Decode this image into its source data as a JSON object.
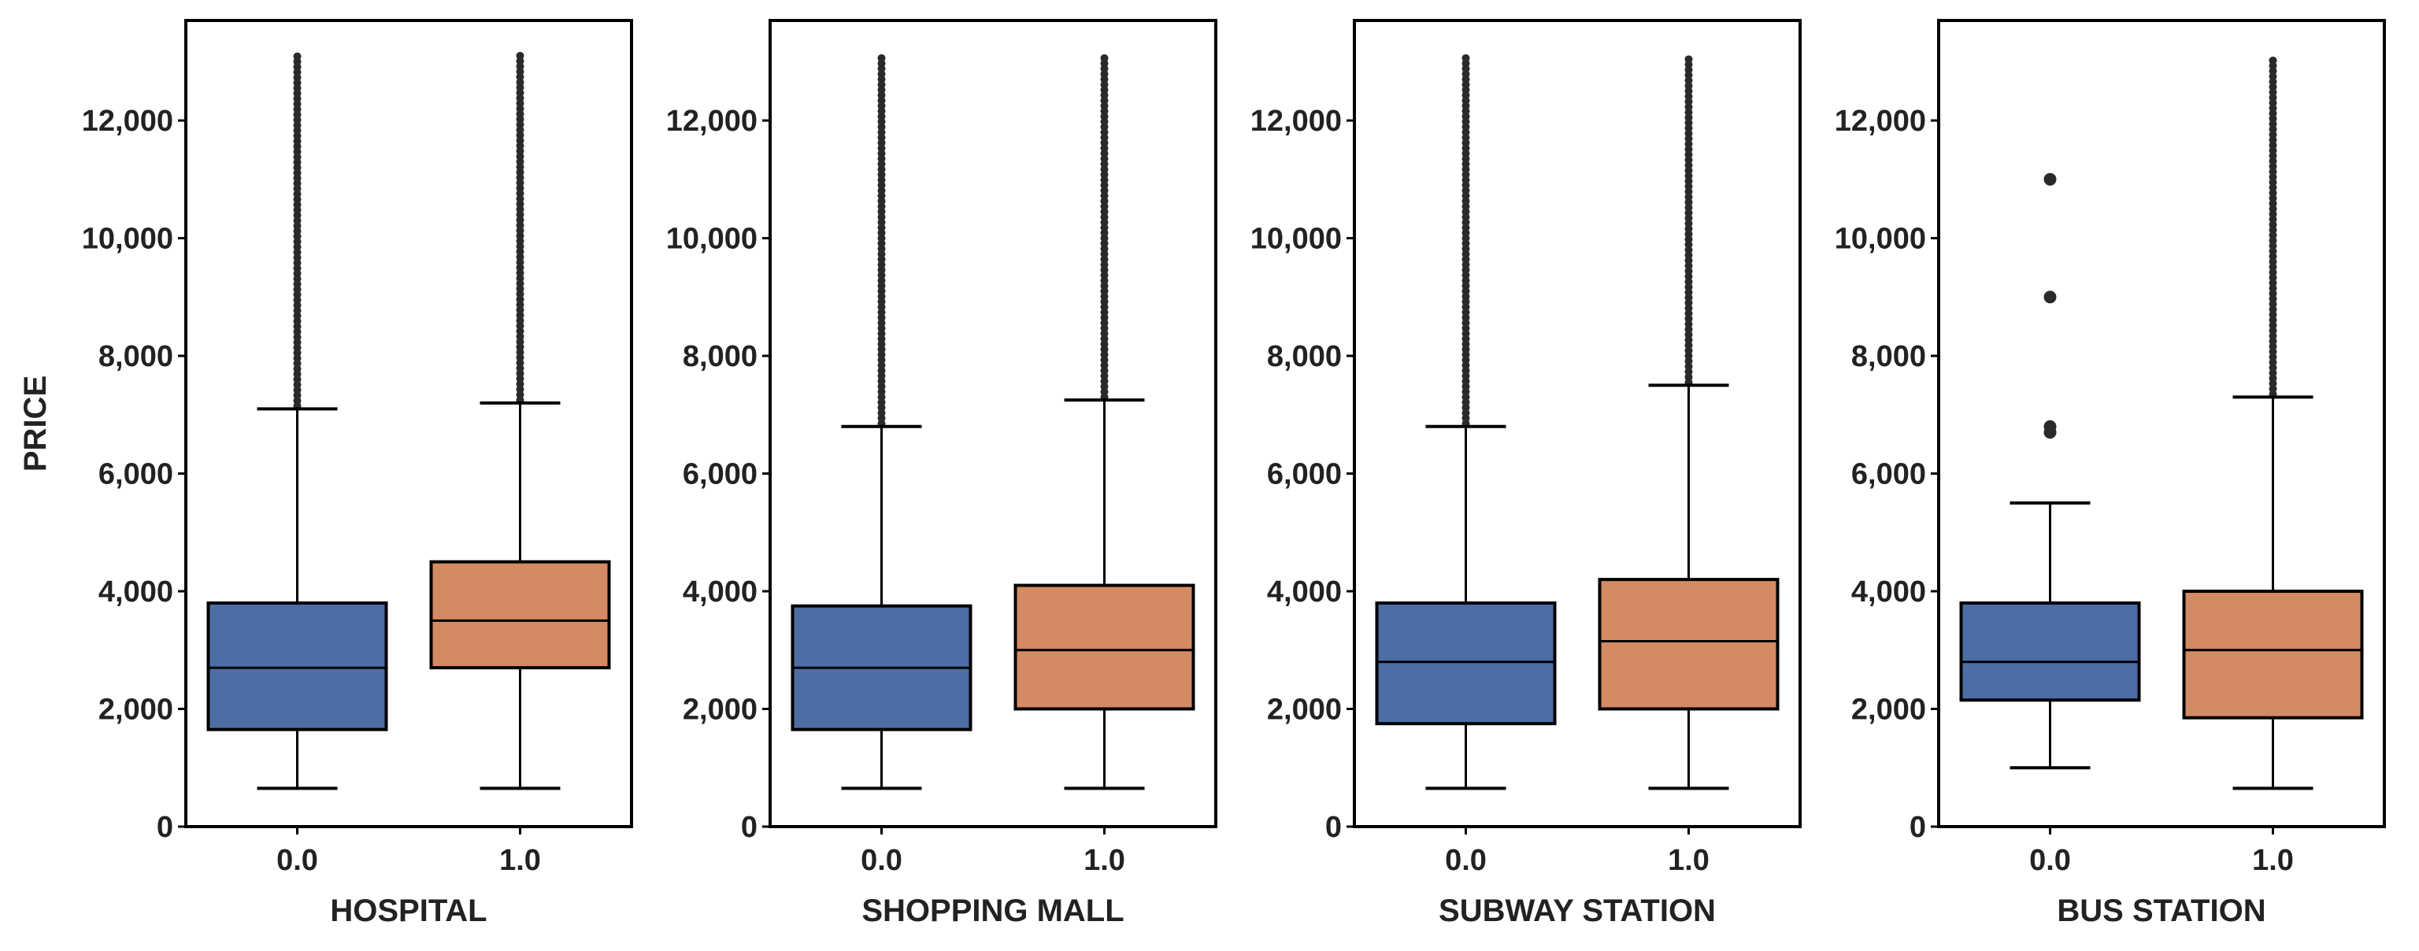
{
  "chart_data": {
    "type": "box",
    "ylabel": "PRICE",
    "y_ticks": [
      0,
      2000,
      4000,
      6000,
      8000,
      10000,
      12000
    ],
    "y_tick_labels": [
      "0",
      "2,000",
      "4,000",
      "6,000",
      "8,000",
      "10,000",
      "12,000"
    ],
    "ylim": [
      0,
      13700
    ],
    "categories": [
      "0.0",
      "1.0"
    ],
    "colors": {
      "0.0": "#4c6ea5",
      "1.0": "#d48a62"
    },
    "panels": [
      {
        "xlabel": "HOSPITAL",
        "boxes": [
          {
            "category": "0.0",
            "min": 650,
            "q1": 1650,
            "median": 2700,
            "q3": 3800,
            "max": 7100,
            "outliers_from": 7150,
            "outliers_to": 13100
          },
          {
            "category": "1.0",
            "min": 650,
            "q1": 2700,
            "median": 3500,
            "q3": 4500,
            "max": 7200,
            "outliers_from": 7250,
            "outliers_to": 13100
          }
        ]
      },
      {
        "xlabel": "SHOPPING MALL",
        "boxes": [
          {
            "category": "0.0",
            "min": 650,
            "q1": 1650,
            "median": 2700,
            "q3": 3750,
            "max": 6800,
            "outliers_from": 6850,
            "outliers_to": 13100
          },
          {
            "category": "1.0",
            "min": 650,
            "q1": 2000,
            "median": 3000,
            "q3": 4100,
            "max": 7250,
            "outliers_from": 7300,
            "outliers_to": 13100
          }
        ]
      },
      {
        "xlabel": "SUBWAY STATION",
        "boxes": [
          {
            "category": "0.0",
            "min": 650,
            "q1": 1750,
            "median": 2800,
            "q3": 3800,
            "max": 6800,
            "outliers_from": 6850,
            "outliers_to": 13100
          },
          {
            "category": "1.0",
            "min": 650,
            "q1": 2000,
            "median": 3150,
            "q3": 4200,
            "max": 7500,
            "outliers_from": 7550,
            "outliers_to": 13100
          }
        ]
      },
      {
        "xlabel": "BUS STATION",
        "boxes": [
          {
            "category": "0.0",
            "min": 1000,
            "q1": 2150,
            "median": 2800,
            "q3": 3800,
            "max": 5500,
            "outliers": [
              6700,
              6800,
              9000,
              11000
            ]
          },
          {
            "category": "1.0",
            "min": 650,
            "q1": 1850,
            "median": 3000,
            "q3": 4000,
            "max": 7300,
            "outliers_from": 7350,
            "outliers_to": 13100
          }
        ]
      }
    ]
  }
}
